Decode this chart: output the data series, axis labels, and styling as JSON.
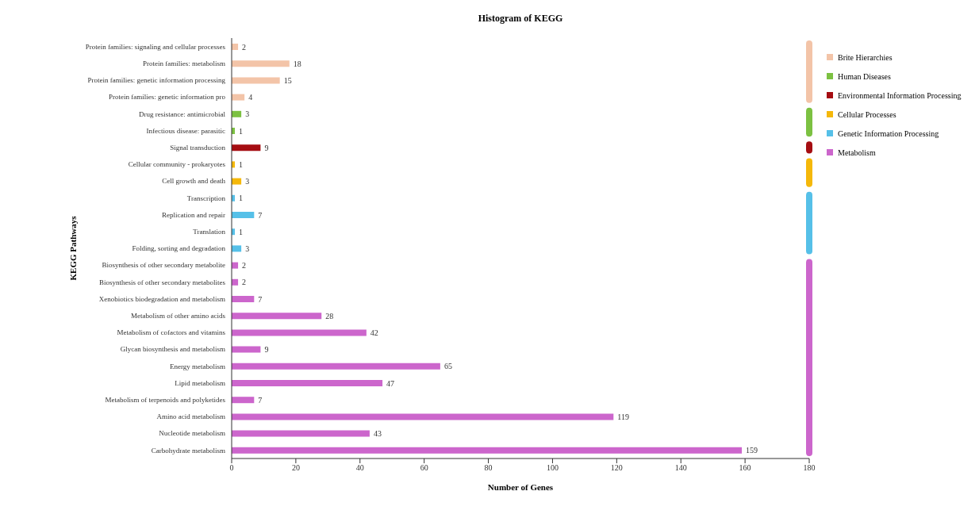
{
  "chart_data": {
    "type": "bar",
    "orientation": "horizontal",
    "stacked": true,
    "title": "Histogram of KEGG",
    "xlabel": "Number of Genes",
    "ylabel": "KEGG Pathways",
    "categories": [
      "Protein families: signaling and cellular processes",
      "Protein families: metabolism",
      "Protein families: genetic information processing",
      "Protein families: genetic information pro",
      "Drug resistance: antimicrobial",
      "Infectious disease: parasitic",
      "Signal transduction",
      "Cellular community - prokaryotes",
      "Cell growth and death",
      "Transcription",
      "Replication and repair",
      "Translation",
      "Folding, sorting and degradation",
      "Biosynthesis of other secondary metabolite",
      "Biosynthesis of other secondary metabolites",
      "Xenobiotics biodegradation and metabolism",
      "Metabolism of other amino acids",
      "Metabolism of cofactors and vitamins",
      "Glycan biosynthesis and metabolism",
      "Energy metabolism",
      "Lipid metabolism",
      "Metabolism of terpenoids and polyketides",
      "Amino acid metabolism",
      "Nucleotide metabolism",
      "Carbohydrate metabolism"
    ],
    "series": [
      {
        "name": "Brite Hierarchies",
        "color": "#f3c4a8",
        "values": [
          2,
          18,
          15,
          4,
          null,
          null,
          null,
          null,
          null,
          null,
          null,
          null,
          null,
          null,
          null,
          null,
          null,
          null,
          null,
          null,
          null,
          null,
          null,
          null,
          null
        ]
      },
      {
        "name": "Human Diseases",
        "color": "#7cc142",
        "values": [
          null,
          null,
          null,
          null,
          3,
          1,
          null,
          null,
          null,
          null,
          null,
          null,
          null,
          null,
          null,
          null,
          null,
          null,
          null,
          null,
          null,
          null,
          null,
          null,
          null
        ]
      },
      {
        "name": "Environmental Information Processing",
        "color": "#a50d12",
        "values": [
          null,
          null,
          null,
          null,
          null,
          null,
          9,
          null,
          null,
          null,
          null,
          null,
          null,
          null,
          null,
          null,
          null,
          null,
          null,
          null,
          null,
          null,
          null,
          null,
          null
        ]
      },
      {
        "name": "Cellular Processes",
        "color": "#f5b80a",
        "values": [
          null,
          null,
          null,
          null,
          null,
          null,
          null,
          1,
          3,
          null,
          null,
          null,
          null,
          null,
          null,
          null,
          null,
          null,
          null,
          null,
          null,
          null,
          null,
          null,
          null
        ]
      },
      {
        "name": "Genetic Information Processing",
        "color": "#56c0e8",
        "values": [
          null,
          null,
          null,
          null,
          null,
          null,
          null,
          null,
          null,
          1,
          7,
          1,
          3,
          null,
          null,
          null,
          null,
          null,
          null,
          null,
          null,
          null,
          null,
          null,
          null
        ]
      },
      {
        "name": "Metabolism",
        "color": "#cc66cc",
        "values": [
          null,
          null,
          null,
          null,
          null,
          null,
          null,
          null,
          null,
          null,
          null,
          null,
          null,
          2,
          2,
          7,
          28,
          42,
          9,
          65,
          47,
          7,
          119,
          43,
          159
        ]
      }
    ],
    "xlim": [
      0,
      180
    ],
    "xticks": [
      0,
      20,
      40,
      60,
      80,
      100,
      120,
      140,
      160,
      180
    ],
    "legend": "top right",
    "data_labels": true
  }
}
